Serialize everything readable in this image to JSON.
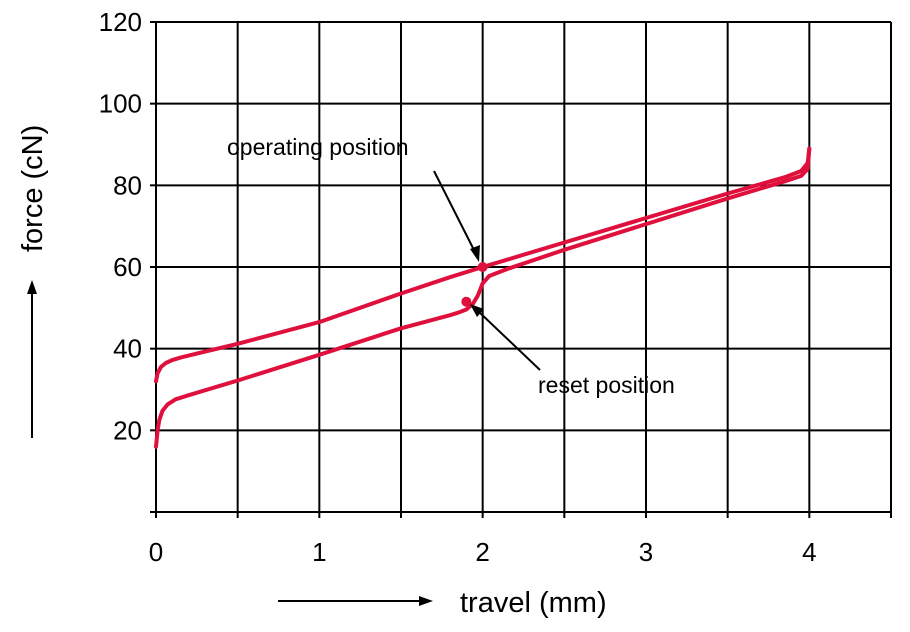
{
  "chart_data": {
    "type": "line",
    "xlabel": "travel (mm)",
    "ylabel": "force (cN)",
    "xlim": [
      0,
      4.5
    ],
    "ylim": [
      0,
      120
    ],
    "x_ticks": [
      0,
      0.5,
      1,
      1.5,
      2,
      2.5,
      3,
      3.5,
      4,
      4.5
    ],
    "y_ticks": [
      0,
      20,
      40,
      60,
      80,
      100,
      120
    ],
    "x_tick_labels": [
      {
        "value": 0,
        "label": "0"
      },
      {
        "value": 1,
        "label": "1"
      },
      {
        "value": 2,
        "label": "2"
      },
      {
        "value": 3,
        "label": "3"
      },
      {
        "value": 4,
        "label": "4"
      }
    ],
    "y_tick_labels": [
      {
        "value": 20,
        "label": "20"
      },
      {
        "value": 40,
        "label": "40"
      },
      {
        "value": 60,
        "label": "60"
      },
      {
        "value": 80,
        "label": "80"
      },
      {
        "value": 100,
        "label": "100"
      },
      {
        "value": 120,
        "label": "120"
      }
    ],
    "grid": true,
    "line_color": "#e0103c",
    "series": [
      {
        "x": [
          0,
          0.01,
          0.03,
          0.06,
          0.1,
          0.15,
          0.25,
          0.5,
          1.0,
          1.5,
          1.8,
          2.0,
          2.5,
          3.0,
          3.5,
          3.85,
          3.95,
          3.99,
          4.0
        ],
        "values": [
          32,
          34,
          35.5,
          36.5,
          37.2,
          37.8,
          38.8,
          41.2,
          46.5,
          53.5,
          57.5,
          60,
          66,
          72,
          78,
          82,
          83.5,
          85.5,
          89
        ]
      },
      {
        "x": [
          4.0,
          3.99,
          3.95,
          3.85,
          3.5,
          3.0,
          2.5,
          2.15,
          2.04,
          2.0,
          1.97,
          1.94,
          1.9,
          1.85,
          1.8,
          1.5,
          1.0,
          0.5,
          0.2,
          0.12,
          0.07,
          0.04,
          0.02,
          0.01,
          0
        ],
        "values": [
          89,
          84,
          82.3,
          81,
          76.8,
          70.5,
          64.2,
          59.5,
          57.8,
          56,
          53,
          51,
          49.6,
          48.8,
          48.2,
          45,
          38.5,
          32.2,
          28.6,
          27.6,
          26.3,
          24.8,
          22.5,
          20,
          16
        ]
      }
    ],
    "markers": [
      {
        "x": 2.0,
        "y": 60
      },
      {
        "x": 1.9,
        "y": 51.5
      }
    ],
    "annotations": [
      {
        "text": "operating position",
        "target": {
          "x": 2.0,
          "y": 60
        }
      },
      {
        "text": "reset position",
        "target": {
          "x": 1.9,
          "y": 51.5
        }
      }
    ]
  }
}
